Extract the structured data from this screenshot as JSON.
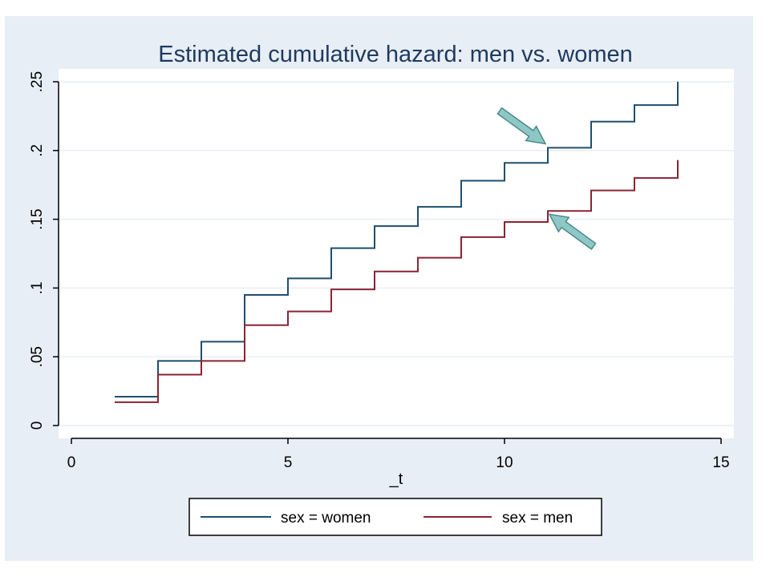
{
  "chart_data": {
    "type": "line",
    "step": true,
    "title": "Estimated cumulative hazard: men vs. women",
    "xlabel": "_t",
    "ylabel": "",
    "xlim": [
      0,
      15
    ],
    "ylim": [
      0,
      0.25
    ],
    "xticks": [
      0,
      5,
      10,
      15
    ],
    "xtick_labels": [
      "0",
      "5",
      "10",
      "15"
    ],
    "yticks": [
      0,
      0.05,
      0.1,
      0.15,
      0.2,
      0.25
    ],
    "ytick_labels": [
      "0",
      ".05",
      ".1",
      ".15",
      ".2",
      ".25"
    ],
    "grid": true,
    "legend_position": "bottom",
    "series": [
      {
        "name": "sex = women",
        "color": "#1f4e6e",
        "x": [
          1,
          2,
          3,
          4,
          5,
          6,
          7,
          8,
          9,
          10,
          11,
          12,
          13,
          14
        ],
        "y": [
          0.021,
          0.047,
          0.061,
          0.095,
          0.107,
          0.129,
          0.145,
          0.159,
          0.178,
          0.191,
          0.202,
          0.221,
          0.233,
          0.25
        ]
      },
      {
        "name": "sex = men",
        "color": "#8b2332",
        "x": [
          1,
          2,
          3,
          4,
          5,
          6,
          7,
          8,
          9,
          10,
          11,
          12,
          13,
          14
        ],
        "y": [
          0.017,
          0.037,
          0.047,
          0.073,
          0.083,
          0.099,
          0.112,
          0.122,
          0.137,
          0.148,
          0.156,
          0.171,
          0.18,
          0.193
        ]
      }
    ],
    "annotations": [
      {
        "type": "arrow",
        "points_to_series": "sex = women",
        "x": 11
      },
      {
        "type": "arrow",
        "points_to_series": "sex = men",
        "x": 11
      }
    ]
  },
  "colors": {
    "outer_background": "#e8eef5",
    "plot_background": "#ffffff",
    "grid": "#e8eef5",
    "arrow_fill": "#8ec8c6",
    "arrow_stroke": "#4a8a88"
  }
}
